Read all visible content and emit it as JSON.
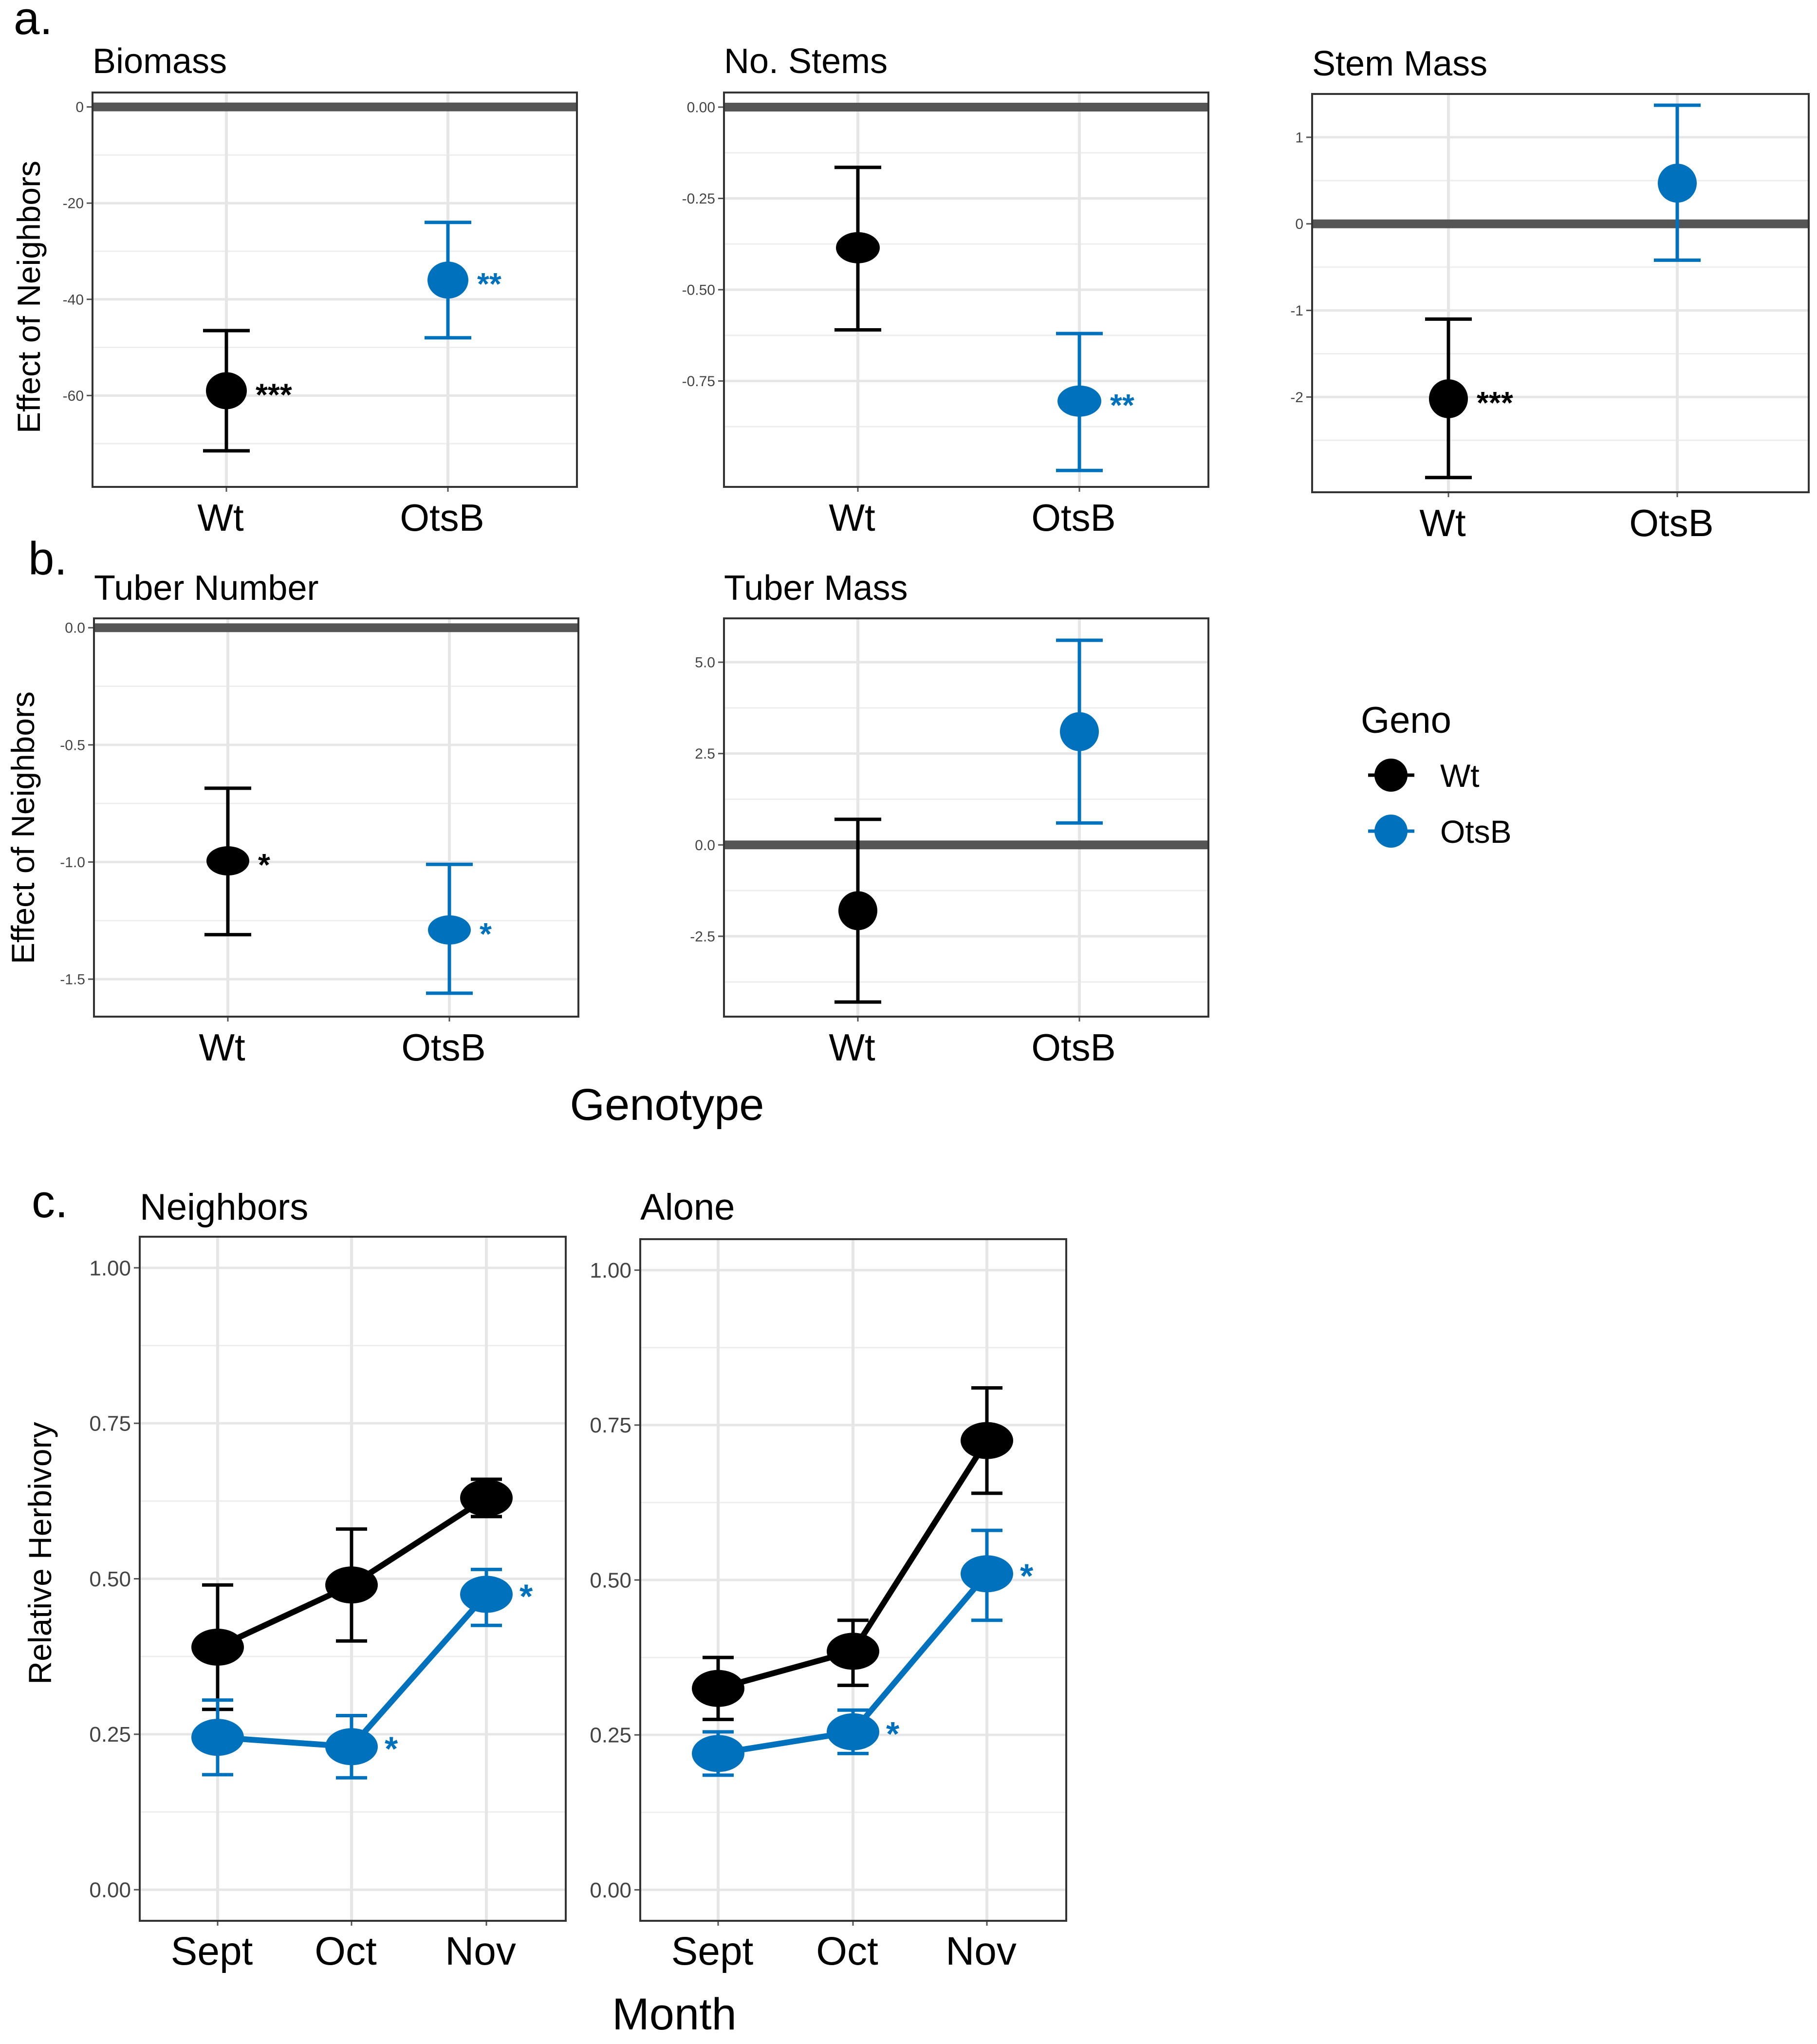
{
  "figure": {
    "panel_labels": {
      "a": "a.",
      "b": "b.",
      "c": "c."
    },
    "shared_y_label": "Effect of Neighbors",
    "genotype_x_label": "Genotype",
    "herbivory_y_label": "Relative Herbivory",
    "month_x_label": "Month"
  },
  "colors": {
    "wt": "#000000",
    "otsb": "#0072BD",
    "zero_line": "#555555",
    "grid": "#e6e6e6",
    "frame": "#333333"
  },
  "legend": {
    "title": "Geno",
    "items": [
      {
        "label": "Wt",
        "color": "#000000"
      },
      {
        "label": "OtsB",
        "color": "#0072BD"
      }
    ]
  },
  "chart_data": [
    {
      "id": "biomass",
      "type": "errorbar",
      "title": "Biomass",
      "categories": [
        "Wt",
        "OtsB"
      ],
      "ylim": [
        -79,
        3
      ],
      "yticks": [
        0,
        -20,
        -40,
        -60
      ],
      "yticklabels": [
        "0",
        "-20",
        "-40",
        "-60"
      ],
      "zero_line": 0,
      "points": [
        {
          "geno": "Wt",
          "mean": -59,
          "lower": -71.5,
          "upper": -46.5,
          "sig": "***"
        },
        {
          "geno": "OtsB",
          "mean": -36,
          "lower": -48,
          "upper": -24,
          "sig": "**"
        }
      ]
    },
    {
      "id": "stems",
      "type": "errorbar",
      "title": "No. Stems",
      "categories": [
        "Wt",
        "OtsB"
      ],
      "ylim": [
        -1.04,
        0.04
      ],
      "yticks": [
        0,
        -0.25,
        -0.5,
        -0.75
      ],
      "yticklabels": [
        "0.00",
        "-0.25",
        "-0.50",
        "-0.75"
      ],
      "zero_line": 0,
      "points": [
        {
          "geno": "Wt",
          "mean": -0.385,
          "lower": -0.61,
          "upper": -0.165,
          "sig": ""
        },
        {
          "geno": "OtsB",
          "mean": -0.805,
          "lower": -0.995,
          "upper": -0.62,
          "sig": "**"
        }
      ]
    },
    {
      "id": "stemmass",
      "type": "errorbar",
      "title": "Stem Mass",
      "categories": [
        "Wt",
        "OtsB"
      ],
      "ylim": [
        -3.1,
        1.5
      ],
      "yticks": [
        1,
        0,
        -1,
        -2
      ],
      "yticklabels": [
        "1",
        "0",
        "-1",
        "-2"
      ],
      "zero_line": 0,
      "points": [
        {
          "geno": "Wt",
          "mean": -2.02,
          "lower": -2.93,
          "upper": -1.1,
          "sig": "***"
        },
        {
          "geno": "OtsB",
          "mean": 0.47,
          "lower": -0.42,
          "upper": 1.37,
          "sig": ""
        }
      ]
    },
    {
      "id": "tubernum",
      "type": "errorbar",
      "title": "Tuber Number",
      "categories": [
        "Wt",
        "OtsB"
      ],
      "ylim": [
        -1.66,
        0.04
      ],
      "yticks": [
        0,
        -0.5,
        -1,
        -1.5
      ],
      "yticklabels": [
        "0.0",
        "-0.5",
        "-1.0",
        "-1.5"
      ],
      "zero_line": 0,
      "points": [
        {
          "geno": "Wt",
          "mean": -0.995,
          "lower": -1.31,
          "upper": -0.685,
          "sig": "*"
        },
        {
          "geno": "OtsB",
          "mean": -1.29,
          "lower": -1.56,
          "upper": -1.01,
          "sig": "*"
        }
      ]
    },
    {
      "id": "tubermass",
      "type": "errorbar",
      "title": "Tuber Mass",
      "categories": [
        "Wt",
        "OtsB"
      ],
      "ylim": [
        -4.7,
        6.2
      ],
      "yticks": [
        5,
        2.5,
        0,
        -2.5
      ],
      "yticklabels": [
        "5.0",
        "2.5",
        "0.0",
        "-2.5"
      ],
      "zero_line": 0,
      "points": [
        {
          "geno": "Wt",
          "mean": -1.8,
          "lower": -4.3,
          "upper": 0.7,
          "sig": ""
        },
        {
          "geno": "OtsB",
          "mean": 3.1,
          "lower": 0.6,
          "upper": 5.6,
          "sig": ""
        }
      ]
    },
    {
      "id": "neighbors",
      "type": "line",
      "title": "Neighbors",
      "categories": [
        "Sept",
        "Oct",
        "Nov"
      ],
      "ylim": [
        -0.05,
        1.05
      ],
      "yticks": [
        1,
        0.75,
        0.5,
        0.25,
        0
      ],
      "yticklabels": [
        "1.00",
        "0.75",
        "0.50",
        "0.25",
        "0.00"
      ],
      "series": [
        {
          "name": "Wt",
          "means": [
            0.39,
            0.49,
            0.63
          ],
          "lower": [
            0.29,
            0.4,
            0.6
          ],
          "upper": [
            0.49,
            0.58,
            0.66
          ],
          "sig": [
            "",
            "",
            ""
          ]
        },
        {
          "name": "OtsB",
          "means": [
            0.245,
            0.23,
            0.475
          ],
          "lower": [
            0.185,
            0.18,
            0.425
          ],
          "upper": [
            0.305,
            0.28,
            0.515
          ],
          "sig": [
            "",
            "*",
            "*"
          ]
        }
      ]
    },
    {
      "id": "alone",
      "type": "line",
      "title": "Alone",
      "categories": [
        "Sept",
        "Oct",
        "Nov"
      ],
      "ylim": [
        -0.05,
        1.05
      ],
      "yticks": [
        1,
        0.75,
        0.5,
        0.25,
        0
      ],
      "yticklabels": [
        "1.00",
        "0.75",
        "0.50",
        "0.25",
        "0.00"
      ],
      "series": [
        {
          "name": "Wt",
          "means": [
            0.325,
            0.385,
            0.725
          ],
          "lower": [
            0.275,
            0.33,
            0.64
          ],
          "upper": [
            0.375,
            0.435,
            0.81
          ],
          "sig": [
            "",
            "",
            ""
          ]
        },
        {
          "name": "OtsB",
          "means": [
            0.22,
            0.255,
            0.51
          ],
          "lower": [
            0.185,
            0.22,
            0.435
          ],
          "upper": [
            0.255,
            0.29,
            0.58
          ],
          "sig": [
            "",
            "*",
            "*"
          ]
        }
      ]
    }
  ]
}
